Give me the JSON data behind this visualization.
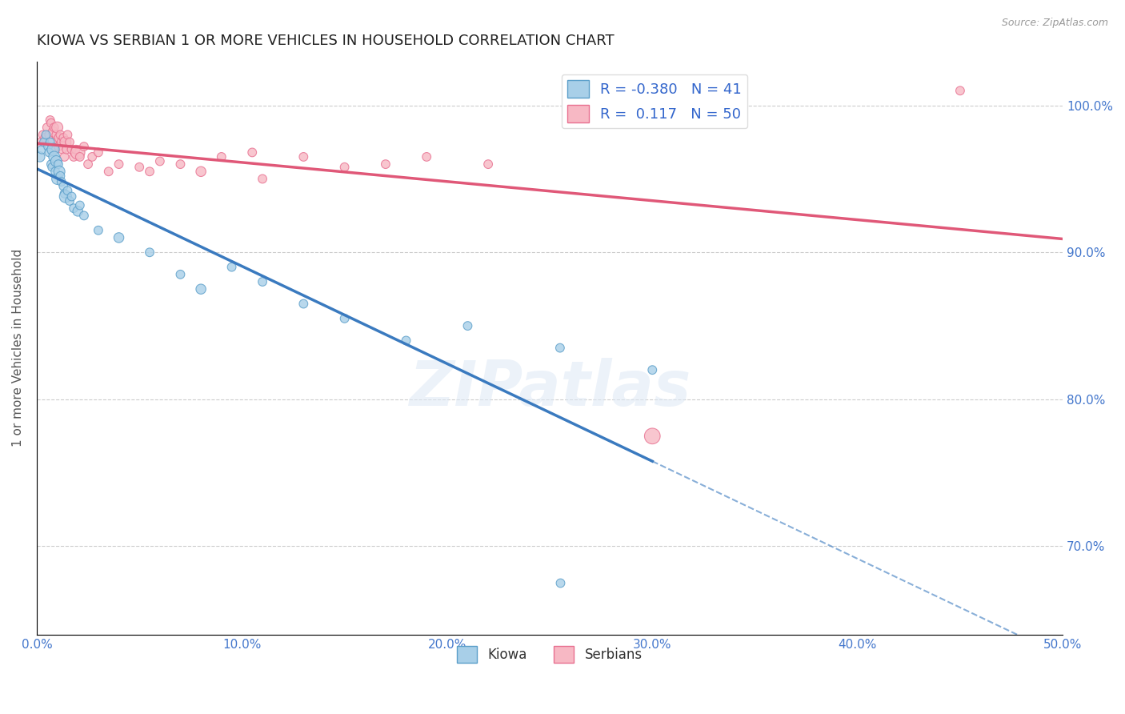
{
  "title": "KIOWA VS SERBIAN 1 OR MORE VEHICLES IN HOUSEHOLD CORRELATION CHART",
  "source": "Source: ZipAtlas.com",
  "ylabel": "1 or more Vehicles in Household",
  "xlim": [
    0.0,
    50.0
  ],
  "ylim": [
    64.0,
    103.0
  ],
  "yticks": [
    70.0,
    80.0,
    90.0,
    100.0
  ],
  "ytick_labels": [
    "70.0%",
    "80.0%",
    "90.0%",
    "100.0%"
  ],
  "xticks": [
    0.0,
    10.0,
    20.0,
    30.0,
    40.0,
    50.0
  ],
  "xtick_labels": [
    "0.0%",
    "10.0%",
    "20.0%",
    "30.0%",
    "40.0%",
    "50.0%"
  ],
  "kiowa_R": -0.38,
  "kiowa_N": 41,
  "serbian_R": 0.117,
  "serbian_N": 50,
  "kiowa_color": "#a8cfe8",
  "serbian_color": "#f7b8c4",
  "kiowa_edge_color": "#5a9ec9",
  "serbian_edge_color": "#e87090",
  "kiowa_line_color": "#3a7abf",
  "serbian_line_color": "#e05878",
  "watermark": "ZIPatlas",
  "kiowa_x": [
    0.15,
    0.25,
    0.35,
    0.45,
    0.55,
    0.6,
    0.65,
    0.7,
    0.75,
    0.8,
    0.85,
    0.9,
    0.95,
    1.0,
    1.05,
    1.1,
    1.15,
    1.2,
    1.3,
    1.35,
    1.4,
    1.5,
    1.6,
    1.7,
    1.8,
    2.0,
    2.1,
    2.3,
    3.0,
    4.0,
    5.5,
    7.0,
    8.0,
    9.5,
    11.0,
    13.0,
    15.0,
    18.0,
    21.0,
    25.5,
    30.0
  ],
  "kiowa_y": [
    96.5,
    97.0,
    97.5,
    98.0,
    97.2,
    96.8,
    97.5,
    96.0,
    95.8,
    97.0,
    96.5,
    95.5,
    96.2,
    95.0,
    96.0,
    95.5,
    95.2,
    94.8,
    94.5,
    94.0,
    93.8,
    94.2,
    93.5,
    93.8,
    93.0,
    92.8,
    93.2,
    92.5,
    91.5,
    91.0,
    90.0,
    88.5,
    87.5,
    89.0,
    88.0,
    86.5,
    85.5,
    84.0,
    85.0,
    83.5,
    82.0
  ],
  "kiowa_size": [
    80,
    60,
    60,
    60,
    60,
    60,
    60,
    60,
    60,
    120,
    100,
    60,
    100,
    100,
    60,
    100,
    60,
    60,
    60,
    60,
    120,
    60,
    60,
    60,
    60,
    80,
    60,
    60,
    60,
    80,
    60,
    60,
    80,
    60,
    60,
    60,
    60,
    60,
    60,
    60,
    60
  ],
  "kiowa_outlier_x": [
    25.5
  ],
  "kiowa_outlier_y": [
    67.5
  ],
  "kiowa_outlier_size": [
    60
  ],
  "serbian_x": [
    0.2,
    0.3,
    0.4,
    0.5,
    0.6,
    0.65,
    0.7,
    0.75,
    0.8,
    0.85,
    0.9,
    0.95,
    1.0,
    1.05,
    1.1,
    1.15,
    1.2,
    1.25,
    1.3,
    1.35,
    1.4,
    1.45,
    1.5,
    1.6,
    1.7,
    1.8,
    1.9,
    2.0,
    2.1,
    2.3,
    2.5,
    2.7,
    3.0,
    3.5,
    4.0,
    5.0,
    5.5,
    6.0,
    7.0,
    8.0,
    9.0,
    10.5,
    11.0,
    13.0,
    15.0,
    17.0,
    19.0,
    22.0,
    30.0,
    45.0
  ],
  "serbian_y": [
    97.5,
    98.0,
    97.8,
    98.5,
    98.0,
    99.0,
    98.8,
    97.5,
    98.2,
    98.5,
    97.0,
    98.0,
    98.5,
    97.2,
    97.8,
    98.0,
    97.5,
    97.0,
    97.8,
    96.5,
    97.5,
    97.0,
    98.0,
    97.5,
    97.0,
    96.5,
    97.0,
    96.8,
    96.5,
    97.2,
    96.0,
    96.5,
    96.8,
    95.5,
    96.0,
    95.8,
    95.5,
    96.2,
    96.0,
    95.5,
    96.5,
    96.8,
    95.0,
    96.5,
    95.8,
    96.0,
    96.5,
    96.0,
    77.5,
    101.0
  ],
  "serbian_size": [
    60,
    60,
    60,
    60,
    60,
    60,
    60,
    60,
    80,
    60,
    60,
    60,
    100,
    60,
    80,
    60,
    60,
    60,
    60,
    60,
    100,
    60,
    60,
    60,
    60,
    60,
    60,
    160,
    60,
    60,
    60,
    60,
    60,
    60,
    60,
    60,
    60,
    60,
    60,
    80,
    60,
    60,
    60,
    60,
    60,
    60,
    60,
    60,
    200,
    60
  ]
}
